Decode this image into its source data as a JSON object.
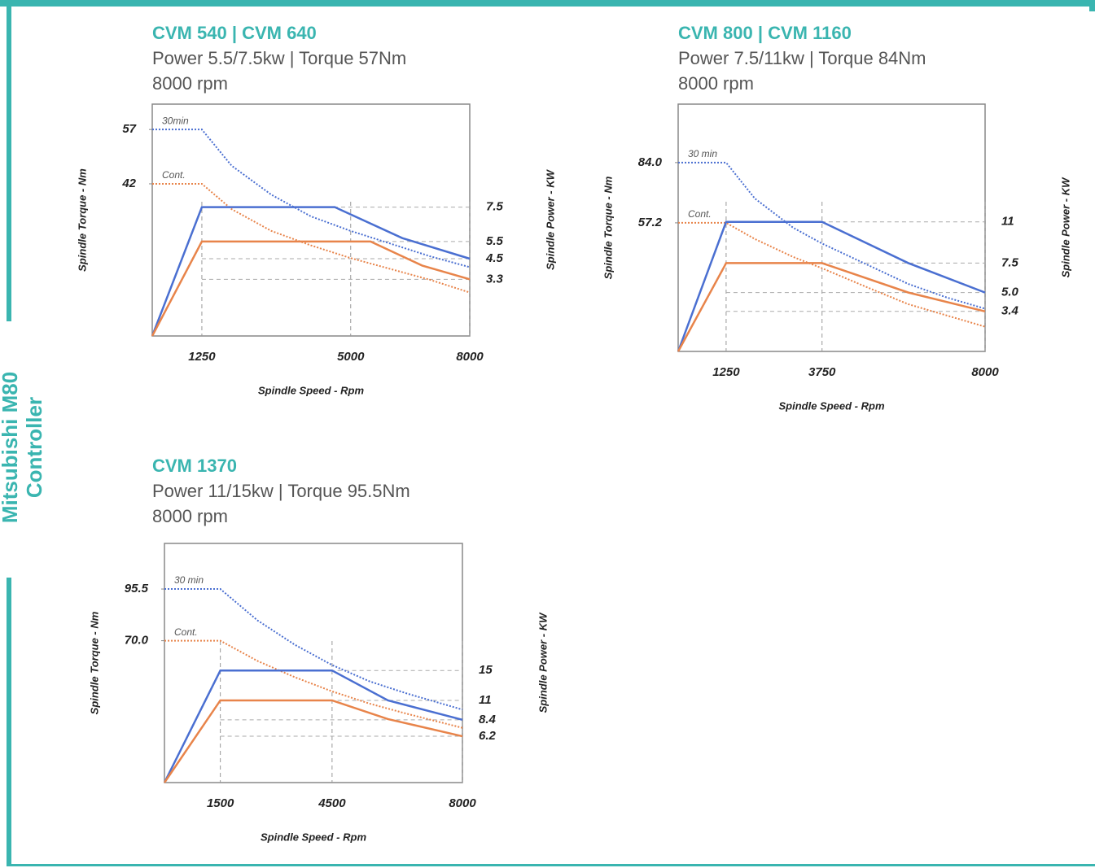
{
  "sidebar": [
    "Mitsubishi M80",
    "Controller"
  ],
  "chart_data": [
    {
      "type": "line",
      "title": "CVM 540 | CVM 640",
      "subtitle": [
        "Power 5.5/7.5kw | Torque 57Nm",
        "8000 rpm"
      ],
      "xlabel": "Spindle Speed - Rpm",
      "ylabel": "Spindle Torque - Nm",
      "y2label": "Spindle Power - KW",
      "xlim": [
        0,
        8000
      ],
      "xticks": [
        1250,
        5000,
        8000
      ],
      "ylim": [
        0,
        64
      ],
      "yticks": [
        57,
        42
      ],
      "y2lim": [
        0,
        13.5
      ],
      "y2ticks": [
        7.5,
        5.5,
        4.5,
        3.3
      ],
      "grid": "dashed",
      "series": [
        {
          "name": "30min",
          "color": "#4a6fd1",
          "style": "dotted",
          "axis": "y",
          "x": [
            0,
            1250,
            2000,
            3000,
            4000,
            5000,
            6000,
            7000,
            8000
          ],
          "values": [
            57,
            57,
            47,
            39,
            33,
            29,
            25.5,
            22,
            19
          ]
        },
        {
          "name": "Cont.",
          "color": "#e8844a",
          "style": "dotted",
          "axis": "y",
          "x": [
            0,
            1250,
            2000,
            3000,
            4000,
            5000,
            6000,
            7000,
            8000
          ],
          "values": [
            42,
            42,
            35,
            29,
            25,
            21.5,
            18.5,
            15.5,
            12
          ]
        },
        {
          "color": "#4a6fd1",
          "style": "solid",
          "axis": "y2",
          "x": [
            0,
            1250,
            4600,
            6300,
            8000
          ],
          "values": [
            0,
            7.5,
            7.5,
            5.7,
            4.5
          ]
        },
        {
          "color": "#e8844a",
          "style": "solid",
          "axis": "y2",
          "x": [
            0,
            1250,
            5500,
            6800,
            8000
          ],
          "values": [
            0,
            5.5,
            5.5,
            4.1,
            3.3
          ]
        }
      ]
    },
    {
      "type": "line",
      "title": "CVM 800 | CVM 1160",
      "subtitle": [
        "Power 7.5/11kw | Torque 84Nm",
        "8000 rpm"
      ],
      "xlabel": "Spindle Speed - Rpm",
      "ylabel": "Spindle Torque - Nm",
      "y2label": "Spindle Power - KW",
      "xlim": [
        0,
        8000
      ],
      "xticks": [
        1250,
        3750,
        8000
      ],
      "ylim": [
        0,
        110
      ],
      "yticks": [
        {
          "value": 84,
          "label": "84.0"
        },
        57.2
      ],
      "y2lim": [
        0,
        21
      ],
      "y2ticks": [
        11,
        7.5,
        {
          "value": 5,
          "label": "5.0"
        },
        3.4
      ],
      "grid": "dashed",
      "series": [
        {
          "name": "30 min",
          "color": "#4a6fd1",
          "style": "dotted",
          "axis": "y",
          "x": [
            0,
            1250,
            2000,
            3000,
            3750,
            5000,
            6000,
            7000,
            8000
          ],
          "values": [
            84,
            84,
            68,
            55,
            48,
            38,
            30,
            24,
            19
          ]
        },
        {
          "name": "Cont.",
          "color": "#e8844a",
          "style": "dotted",
          "axis": "y",
          "x": [
            0,
            1250,
            2000,
            3000,
            3750,
            5000,
            6000,
            7000,
            8000
          ],
          "values": [
            57.2,
            57.2,
            50,
            42,
            37,
            28,
            21,
            16,
            11
          ]
        },
        {
          "color": "#4a6fd1",
          "style": "solid",
          "axis": "y2",
          "x": [
            0,
            1250,
            3750,
            6000,
            8000
          ],
          "values": [
            0,
            11,
            11,
            7.5,
            5
          ]
        },
        {
          "color": "#e8844a",
          "style": "solid",
          "axis": "y2",
          "x": [
            0,
            1250,
            3750,
            6000,
            8000
          ],
          "values": [
            0,
            7.5,
            7.5,
            5,
            3.4
          ]
        }
      ]
    },
    {
      "type": "line",
      "title": "CVM 1370",
      "subtitle": [
        "Power 11/15kw | Torque 95.5Nm",
        "8000 rpm"
      ],
      "xlabel": "Spindle Speed - Rpm",
      "ylabel": "Spindle Torque - Nm",
      "y2label": "Spindle Power - KW",
      "xlim": [
        0,
        8000
      ],
      "xticks": [
        1500,
        4500,
        8000
      ],
      "ylim": [
        0,
        118
      ],
      "yticks": [
        95.5,
        {
          "value": 70,
          "label": "70.0"
        }
      ],
      "y2lim": [
        0,
        32
      ],
      "y2ticks": [
        15,
        11,
        8.4,
        6.2
      ],
      "grid": "dashed",
      "series": [
        {
          "name": "30 min",
          "color": "#4a6fd1",
          "style": "dotted",
          "axis": "y",
          "x": [
            0,
            1500,
            2500,
            3500,
            4500,
            5500,
            6500,
            8000
          ],
          "values": [
            95.5,
            95.5,
            80,
            68,
            58,
            50,
            44,
            36
          ]
        },
        {
          "name": "Cont.",
          "color": "#e8844a",
          "style": "dotted",
          "axis": "y",
          "x": [
            0,
            1500,
            2500,
            3500,
            4500,
            5500,
            6500,
            8000
          ],
          "values": [
            70,
            70,
            60,
            52,
            45,
            39,
            34,
            27
          ]
        },
        {
          "color": "#4a6fd1",
          "style": "solid",
          "axis": "y2",
          "x": [
            0,
            1500,
            4500,
            6000,
            8000
          ],
          "values": [
            0,
            15,
            15,
            11,
            8.4
          ]
        },
        {
          "color": "#e8844a",
          "style": "solid",
          "axis": "y2",
          "x": [
            0,
            1500,
            4500,
            6000,
            8000
          ],
          "values": [
            0,
            11,
            11,
            8.5,
            6.2
          ]
        }
      ]
    }
  ]
}
